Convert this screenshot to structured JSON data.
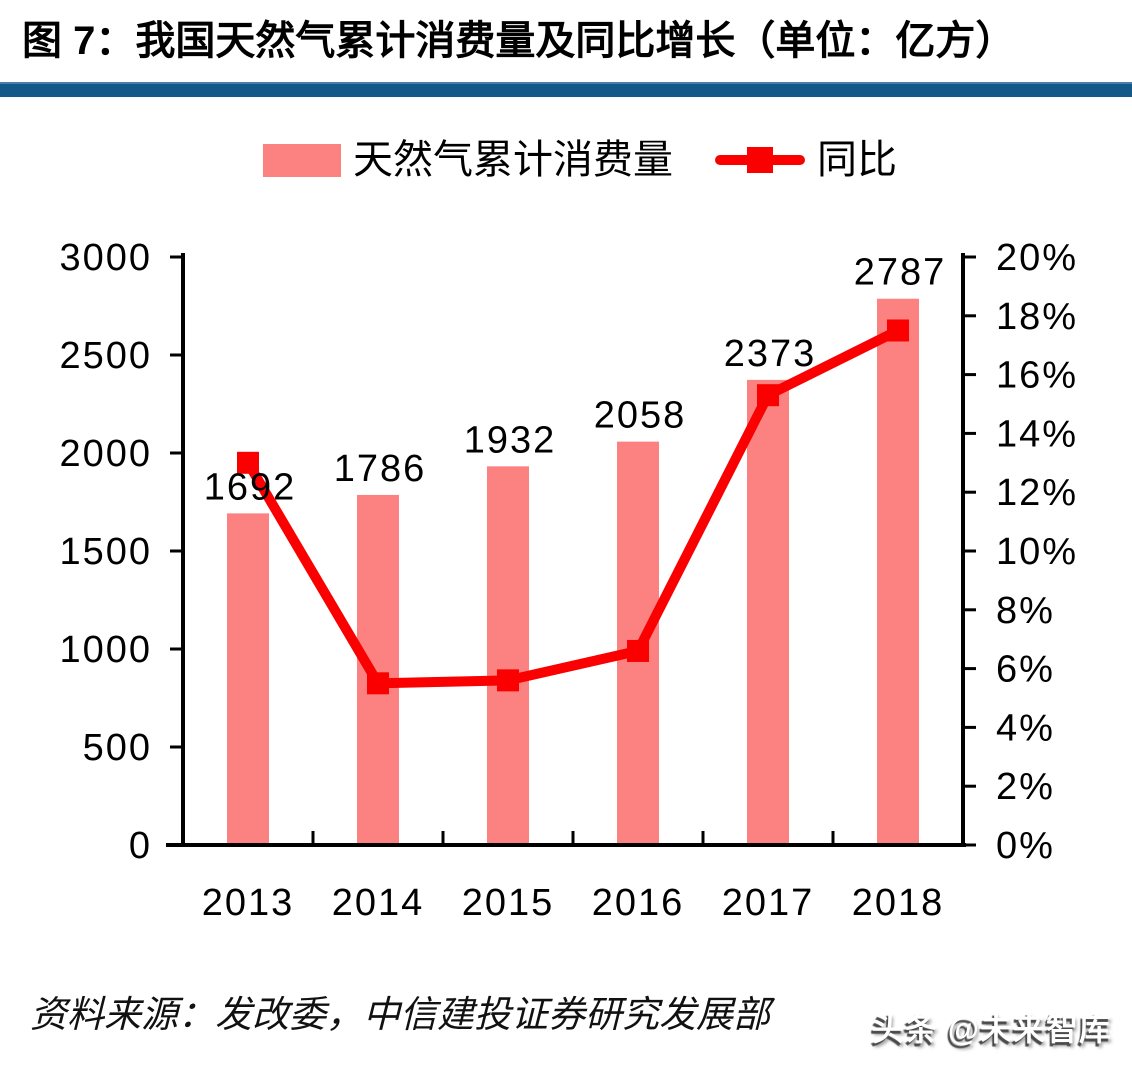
{
  "header": {
    "title": "图 7：我国天然气累计消费量及同比增长（单位：亿方）"
  },
  "legend": {
    "bar": {
      "label": "天然气累计消费量",
      "color": "#FB8281"
    },
    "line": {
      "label": "同比",
      "color": "#FA0000"
    }
  },
  "chart_data": {
    "type": "bar+line combo",
    "categories": [
      "2013",
      "2014",
      "2015",
      "2016",
      "2017",
      "2018"
    ],
    "series": [
      {
        "name": "天然气累计消费量",
        "type": "bar",
        "axis": "left",
        "unit": "亿方",
        "values": [
          1692,
          1786,
          1932,
          2058,
          2373,
          2787
        ],
        "data_labels": [
          "1692",
          "1786",
          "1932",
          "2058",
          "2373",
          "2787"
        ],
        "color": "#FB8281"
      },
      {
        "name": "同比",
        "type": "line",
        "axis": "right",
        "unit": "%",
        "values": [
          13.0,
          5.5,
          5.6,
          6.6,
          15.3,
          17.5
        ],
        "color": "#FA0000",
        "marker": "square"
      }
    ],
    "left_axis": {
      "min": 0,
      "max": 3000,
      "step": 500,
      "tick_labels": [
        "0",
        "500",
        "1000",
        "1500",
        "2000",
        "2500",
        "3000"
      ]
    },
    "right_axis": {
      "min": 0,
      "max": 20,
      "step": 2,
      "tick_labels": [
        "0%",
        "2%",
        "4%",
        "6%",
        "8%",
        "10%",
        "12%",
        "14%",
        "16%",
        "18%",
        "20%"
      ]
    },
    "grid": false,
    "legend_position": "top"
  },
  "footer": {
    "source": "资料来源：发改委，中信建投证券研究发展部",
    "watermark": "头条 @未来智库"
  },
  "colors": {
    "bar": "#FB8281",
    "line": "#FA0000",
    "divider": "#135A88",
    "text": "#000000"
  }
}
